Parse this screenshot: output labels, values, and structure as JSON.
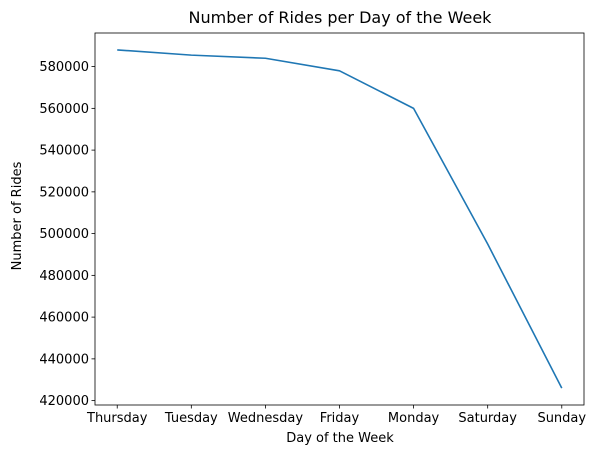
{
  "chart_data": {
    "type": "line",
    "title": "Number of Rides per Day of the Week",
    "xlabel": "Day of the Week",
    "ylabel": "Number of Rides",
    "categories": [
      "Thursday",
      "Tuesday",
      "Wednesday",
      "Friday",
      "Monday",
      "Saturday",
      "Sunday"
    ],
    "series": [
      {
        "values": [
          588000,
          585500,
          584000,
          578000,
          560000,
          495000,
          426000
        ],
        "color": "#1f77b4"
      }
    ],
    "ylim": [
      417900,
      596100
    ],
    "yticks": [
      420000,
      440000,
      460000,
      480000,
      500000,
      520000,
      540000,
      560000,
      580000
    ],
    "grid": false,
    "legend": "none"
  }
}
